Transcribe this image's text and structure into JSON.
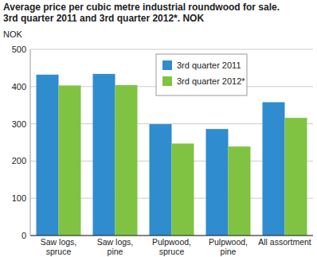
{
  "chart_data": {
    "type": "bar",
    "title": "Average price per cubic metre industrial roundwood for sale.",
    "subtitle": "3rd quarter 2011 and 3rd quarter 2012*. NOK",
    "y_label": "NOK",
    "categories": [
      "Saw logs, spruce",
      "Saw logs, pine",
      "Pulpwood, spruce",
      "Pulpwood, pine",
      "All assortment"
    ],
    "series": [
      {
        "name": "3rd quarter 2011",
        "color": "#2f8ccf",
        "values": [
          432,
          434,
          299,
          286,
          358
        ]
      },
      {
        "name": "3rd quarter 2012*",
        "color": "#80c342",
        "values": [
          403,
          404,
          247,
          239,
          316
        ]
      }
    ],
    "ylim": [
      0,
      500
    ],
    "yticks": [
      0,
      100,
      200,
      300,
      400,
      500
    ],
    "grid": true,
    "legend": "top"
  }
}
